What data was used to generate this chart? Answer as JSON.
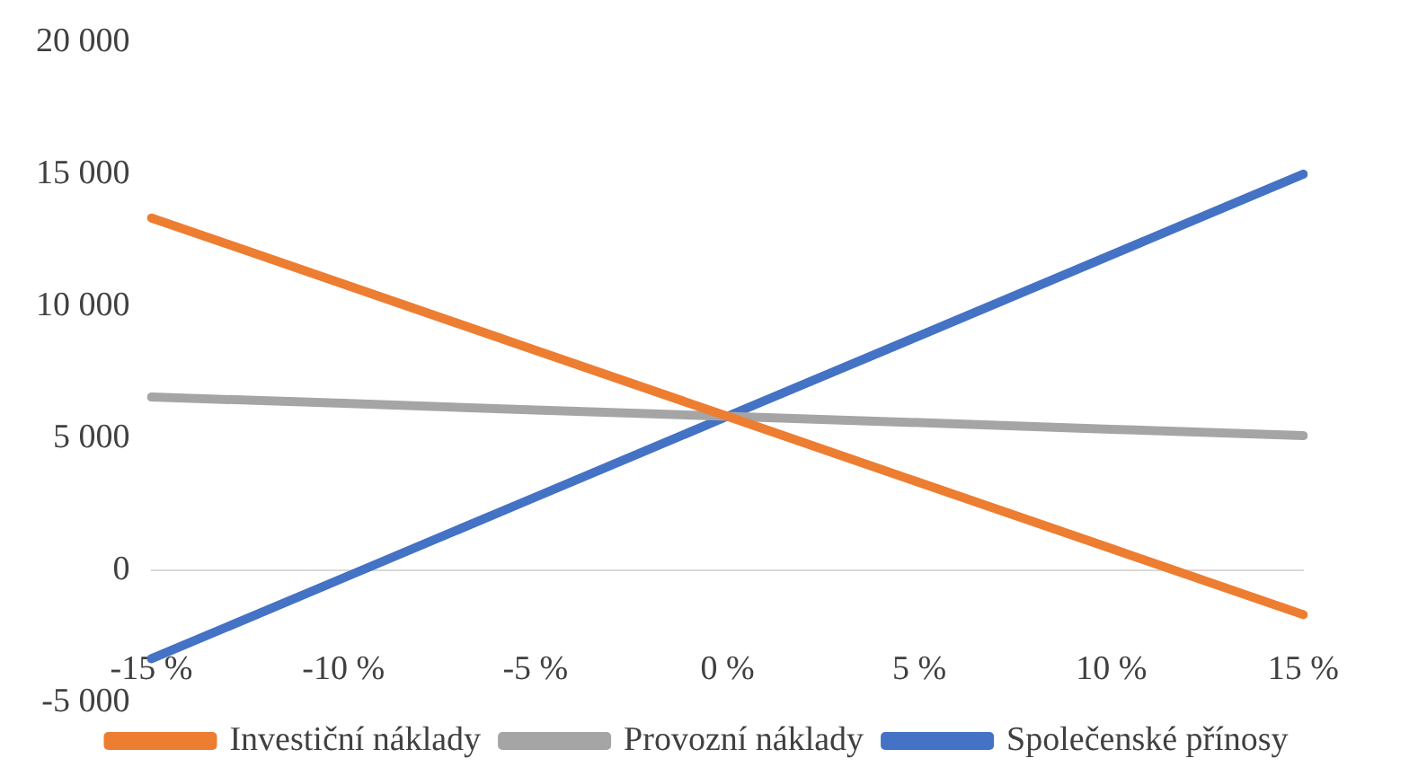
{
  "chart_data": {
    "type": "line",
    "categories": [
      "-15 %",
      "-10 %",
      "-5 %",
      "0 %",
      "5 %",
      "10 %",
      "15 %"
    ],
    "series": [
      {
        "name": "Investiční náklady",
        "color": "#ed7d31",
        "values": [
          13340,
          10840,
          8330,
          5830,
          3320,
          820,
          -1680
        ]
      },
      {
        "name": "Provozní náklady",
        "color": "#a5a5a5",
        "values": [
          6560,
          6320,
          6070,
          5830,
          5590,
          5340,
          5100
        ]
      },
      {
        "name": "Společenské přínosy",
        "color": "#4472c4",
        "values": [
          -3350,
          -290,
          2770,
          5830,
          8880,
          11940,
          15000
        ]
      }
    ],
    "ylim": [
      -5000,
      20000
    ],
    "yticks": [
      {
        "value": -5000,
        "label": "-5 000"
      },
      {
        "value": 0,
        "label": "0"
      },
      {
        "value": 5000,
        "label": "5 000"
      },
      {
        "value": 10000,
        "label": "10 000"
      },
      {
        "value": 15000,
        "label": "15 000"
      },
      {
        "value": 20000,
        "label": "20 000"
      }
    ],
    "grid": false,
    "legend": "bottom",
    "marker": "none",
    "line_style": "solid"
  }
}
